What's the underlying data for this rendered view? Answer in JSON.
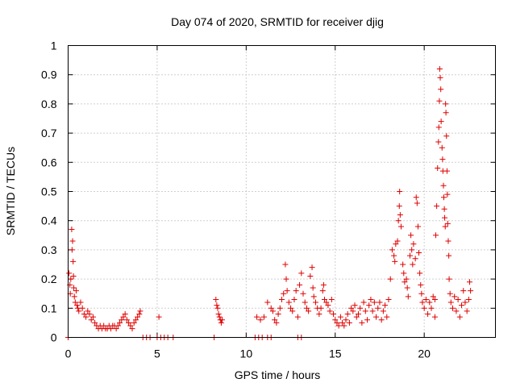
{
  "chart_data": {
    "type": "scatter",
    "title": "Day 074 of 2020, SRMTID for receiver djig",
    "xlabel": "GPS time / hours",
    "ylabel": "SRMTID / TECUs",
    "xlim": [
      0,
      24
    ],
    "ylim": [
      0,
      1
    ],
    "xticks": [
      0,
      5,
      10,
      15,
      20
    ],
    "xtick_labels": [
      "0",
      "5",
      "10",
      "15",
      "20"
    ],
    "yticks": [
      0,
      0.1,
      0.2,
      0.3,
      0.4,
      0.5,
      0.6,
      0.7,
      0.8,
      0.9,
      1
    ],
    "ytick_labels": [
      "0",
      "0.1",
      "0.2",
      "0.3",
      "0.4",
      "0.5",
      "0.6",
      "0.7",
      "0.8",
      "0.9",
      "1"
    ],
    "grid": true,
    "marker": "+",
    "color": "#e00000",
    "series": [
      {
        "name": "SRMTID",
        "points": [
          [
            0.05,
            0.22
          ],
          [
            0.1,
            0.18
          ],
          [
            0.12,
            0.15
          ],
          [
            0.15,
            0.2
          ],
          [
            0.2,
            0.37
          ],
          [
            0.22,
            0.3
          ],
          [
            0.25,
            0.33
          ],
          [
            0.28,
            0.26
          ],
          [
            0.3,
            0.21
          ],
          [
            0.32,
            0.17
          ],
          [
            0.35,
            0.14
          ],
          [
            0.4,
            0.12
          ],
          [
            0.45,
            0.16
          ],
          [
            0.5,
            0.11
          ],
          [
            0.55,
            0.1
          ],
          [
            0.6,
            0.09
          ],
          [
            0.7,
            0.12
          ],
          [
            0.8,
            0.1
          ],
          [
            0.9,
            0.08
          ],
          [
            1.0,
            0.07
          ],
          [
            1.1,
            0.09
          ],
          [
            1.2,
            0.08
          ],
          [
            1.3,
            0.06
          ],
          [
            1.4,
            0.07
          ],
          [
            1.5,
            0.05
          ],
          [
            1.6,
            0.04
          ],
          [
            1.7,
            0.03
          ],
          [
            1.8,
            0.04
          ],
          [
            1.9,
            0.03
          ],
          [
            2.0,
            0.04
          ],
          [
            2.1,
            0.03
          ],
          [
            2.2,
            0.03
          ],
          [
            2.3,
            0.04
          ],
          [
            2.4,
            0.03
          ],
          [
            2.5,
            0.04
          ],
          [
            2.6,
            0.04
          ],
          [
            2.7,
            0.03
          ],
          [
            2.8,
            0.04
          ],
          [
            2.9,
            0.05
          ],
          [
            3.0,
            0.06
          ],
          [
            3.1,
            0.07
          ],
          [
            3.2,
            0.08
          ],
          [
            3.3,
            0.06
          ],
          [
            3.4,
            0.05
          ],
          [
            3.5,
            0.04
          ],
          [
            3.6,
            0.03
          ],
          [
            3.7,
            0.05
          ],
          [
            3.8,
            0.06
          ],
          [
            3.9,
            0.07
          ],
          [
            4.0,
            0.08
          ],
          [
            4.05,
            0.09
          ],
          [
            0.0,
            0.0
          ],
          [
            4.2,
            0.0
          ],
          [
            4.4,
            0.0
          ],
          [
            4.6,
            0.0
          ],
          [
            5.0,
            0.0
          ],
          [
            5.2,
            0.0
          ],
          [
            5.4,
            0.0
          ],
          [
            5.6,
            0.0
          ],
          [
            5.9,
            0.0
          ],
          [
            8.2,
            0.0
          ],
          [
            10.5,
            0.0
          ],
          [
            10.7,
            0.0
          ],
          [
            10.9,
            0.0
          ],
          [
            11.2,
            0.0
          ],
          [
            11.4,
            0.0
          ],
          [
            12.9,
            0.0
          ],
          [
            13.1,
            0.0
          ],
          [
            5.1,
            0.07
          ],
          [
            8.3,
            0.13
          ],
          [
            8.35,
            0.11
          ],
          [
            8.4,
            0.1
          ],
          [
            8.45,
            0.08
          ],
          [
            8.5,
            0.07
          ],
          [
            8.55,
            0.06
          ],
          [
            8.6,
            0.05
          ],
          [
            8.65,
            0.06
          ],
          [
            10.6,
            0.07
          ],
          [
            10.8,
            0.06
          ],
          [
            11.0,
            0.07
          ],
          [
            11.2,
            0.12
          ],
          [
            11.4,
            0.1
          ],
          [
            11.5,
            0.09
          ],
          [
            11.6,
            0.06
          ],
          [
            11.7,
            0.05
          ],
          [
            11.8,
            0.08
          ],
          [
            11.9,
            0.1
          ],
          [
            12.0,
            0.13
          ],
          [
            12.1,
            0.15
          ],
          [
            12.2,
            0.25
          ],
          [
            12.25,
            0.2
          ],
          [
            12.3,
            0.16
          ],
          [
            12.4,
            0.12
          ],
          [
            12.5,
            0.1
          ],
          [
            12.6,
            0.09
          ],
          [
            12.7,
            0.13
          ],
          [
            12.8,
            0.16
          ],
          [
            12.9,
            0.07
          ],
          [
            13.0,
            0.18
          ],
          [
            13.1,
            0.22
          ],
          [
            13.2,
            0.15
          ],
          [
            13.3,
            0.12
          ],
          [
            13.4,
            0.1
          ],
          [
            13.5,
            0.09
          ],
          [
            13.6,
            0.21
          ],
          [
            13.7,
            0.24
          ],
          [
            13.75,
            0.17
          ],
          [
            13.8,
            0.14
          ],
          [
            13.9,
            0.12
          ],
          [
            14.0,
            0.1
          ],
          [
            14.1,
            0.08
          ],
          [
            14.2,
            0.1
          ],
          [
            14.3,
            0.16
          ],
          [
            14.35,
            0.18
          ],
          [
            14.4,
            0.13
          ],
          [
            14.5,
            0.12
          ],
          [
            14.6,
            0.11
          ],
          [
            14.7,
            0.09
          ],
          [
            14.8,
            0.13
          ],
          [
            14.9,
            0.08
          ],
          [
            15.0,
            0.06
          ],
          [
            15.1,
            0.05
          ],
          [
            15.2,
            0.04
          ],
          [
            15.3,
            0.07
          ],
          [
            15.4,
            0.05
          ],
          [
            15.5,
            0.04
          ],
          [
            15.6,
            0.06
          ],
          [
            15.7,
            0.08
          ],
          [
            15.8,
            0.05
          ],
          [
            15.9,
            0.1
          ],
          [
            16.0,
            0.09
          ],
          [
            16.1,
            0.11
          ],
          [
            16.2,
            0.07
          ],
          [
            16.3,
            0.08
          ],
          [
            16.4,
            0.1
          ],
          [
            16.5,
            0.05
          ],
          [
            16.6,
            0.12
          ],
          [
            16.7,
            0.09
          ],
          [
            16.8,
            0.06
          ],
          [
            16.9,
            0.11
          ],
          [
            17.0,
            0.13
          ],
          [
            17.1,
            0.09
          ],
          [
            17.2,
            0.12
          ],
          [
            17.3,
            0.07
          ],
          [
            17.4,
            0.1
          ],
          [
            17.5,
            0.12
          ],
          [
            17.6,
            0.06
          ],
          [
            17.7,
            0.09
          ],
          [
            17.8,
            0.11
          ],
          [
            17.9,
            0.07
          ],
          [
            18.0,
            0.13
          ],
          [
            18.1,
            0.2
          ],
          [
            18.2,
            0.3
          ],
          [
            18.3,
            0.28
          ],
          [
            18.35,
            0.26
          ],
          [
            18.4,
            0.32
          ],
          [
            18.5,
            0.33
          ],
          [
            18.55,
            0.4
          ],
          [
            18.6,
            0.45
          ],
          [
            18.62,
            0.5
          ],
          [
            18.65,
            0.42
          ],
          [
            18.7,
            0.38
          ],
          [
            18.8,
            0.25
          ],
          [
            18.85,
            0.22
          ],
          [
            18.9,
            0.19
          ],
          [
            19.0,
            0.2
          ],
          [
            19.05,
            0.17
          ],
          [
            19.1,
            0.14
          ],
          [
            19.2,
            0.28
          ],
          [
            19.25,
            0.35
          ],
          [
            19.3,
            0.3
          ],
          [
            19.35,
            0.25
          ],
          [
            19.4,
            0.32
          ],
          [
            19.5,
            0.27
          ],
          [
            19.55,
            0.48
          ],
          [
            19.6,
            0.46
          ],
          [
            19.65,
            0.38
          ],
          [
            19.7,
            0.29
          ],
          [
            19.75,
            0.22
          ],
          [
            19.8,
            0.18
          ],
          [
            19.85,
            0.15
          ],
          [
            19.9,
            0.12
          ],
          [
            20.0,
            0.1
          ],
          [
            20.1,
            0.13
          ],
          [
            20.2,
            0.08
          ],
          [
            20.3,
            0.12
          ],
          [
            20.4,
            0.1
          ],
          [
            20.5,
            0.14
          ],
          [
            20.6,
            0.07
          ],
          [
            20.6,
            0.13
          ],
          [
            20.65,
            0.35
          ],
          [
            20.7,
            0.45
          ],
          [
            20.75,
            0.58
          ],
          [
            20.8,
            0.67
          ],
          [
            20.82,
            0.72
          ],
          [
            20.85,
            0.81
          ],
          [
            20.87,
            0.92
          ],
          [
            20.9,
            0.89
          ],
          [
            20.93,
            0.85
          ],
          [
            20.95,
            0.74
          ],
          [
            21.0,
            0.65
          ],
          [
            21.03,
            0.61
          ],
          [
            21.05,
            0.57
          ],
          [
            21.08,
            0.52
          ],
          [
            21.1,
            0.48
          ],
          [
            21.13,
            0.44
          ],
          [
            21.15,
            0.41
          ],
          [
            21.18,
            0.38
          ],
          [
            21.2,
            0.8
          ],
          [
            21.22,
            0.77
          ],
          [
            21.25,
            0.69
          ],
          [
            21.28,
            0.57
          ],
          [
            21.3,
            0.49
          ],
          [
            21.32,
            0.39
          ],
          [
            21.35,
            0.33
          ],
          [
            21.38,
            0.28
          ],
          [
            21.4,
            0.2
          ],
          [
            21.45,
            0.15
          ],
          [
            21.5,
            0.12
          ],
          [
            21.6,
            0.1
          ],
          [
            21.7,
            0.14
          ],
          [
            21.8,
            0.09
          ],
          [
            21.9,
            0.13
          ],
          [
            22.0,
            0.07
          ],
          [
            22.1,
            0.11
          ],
          [
            22.2,
            0.16
          ],
          [
            22.3,
            0.12
          ],
          [
            22.4,
            0.09
          ],
          [
            22.5,
            0.13
          ],
          [
            22.55,
            0.19
          ],
          [
            22.6,
            0.16
          ]
        ]
      }
    ]
  }
}
